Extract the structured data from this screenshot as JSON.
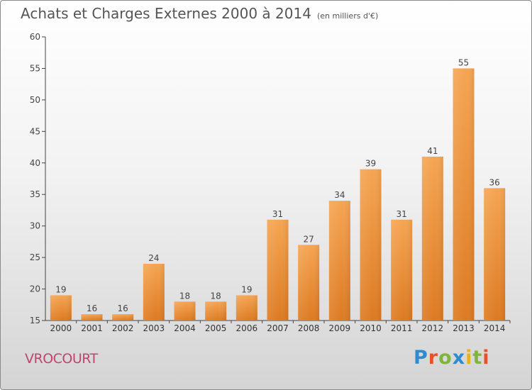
{
  "title": "Achats et Charges Externes 2000 à 2014",
  "subtitle": "(en milliers d'€)",
  "commune": "VROCOURT",
  "logo": {
    "letters": [
      "P",
      "r",
      "o",
      "x",
      "i",
      "t",
      "i"
    ],
    "colors": [
      "#2e8bcf",
      "#e8502a",
      "#7fb539",
      "#2e8bcf",
      "#e8b21d",
      "#7fb539",
      "#e8502a"
    ]
  },
  "chart_data": {
    "type": "bar",
    "categories": [
      "2000",
      "2001",
      "2002",
      "2003",
      "2004",
      "2005",
      "2006",
      "2007",
      "2008",
      "2009",
      "2010",
      "2011",
      "2012",
      "2013",
      "2014"
    ],
    "values": [
      19,
      16,
      16,
      24,
      18,
      18,
      19,
      31,
      27,
      34,
      39,
      31,
      41,
      55,
      36
    ],
    "ylim": [
      15,
      60
    ],
    "yticks": [
      15,
      20,
      25,
      30,
      35,
      40,
      45,
      50,
      55,
      60
    ],
    "grid": false,
    "bar_color_top": "#f5a552",
    "bar_color_bottom": "#dd7a22",
    "title": "Achats et Charges Externes 2000 à 2014",
    "xlabel": "",
    "ylabel": ""
  }
}
